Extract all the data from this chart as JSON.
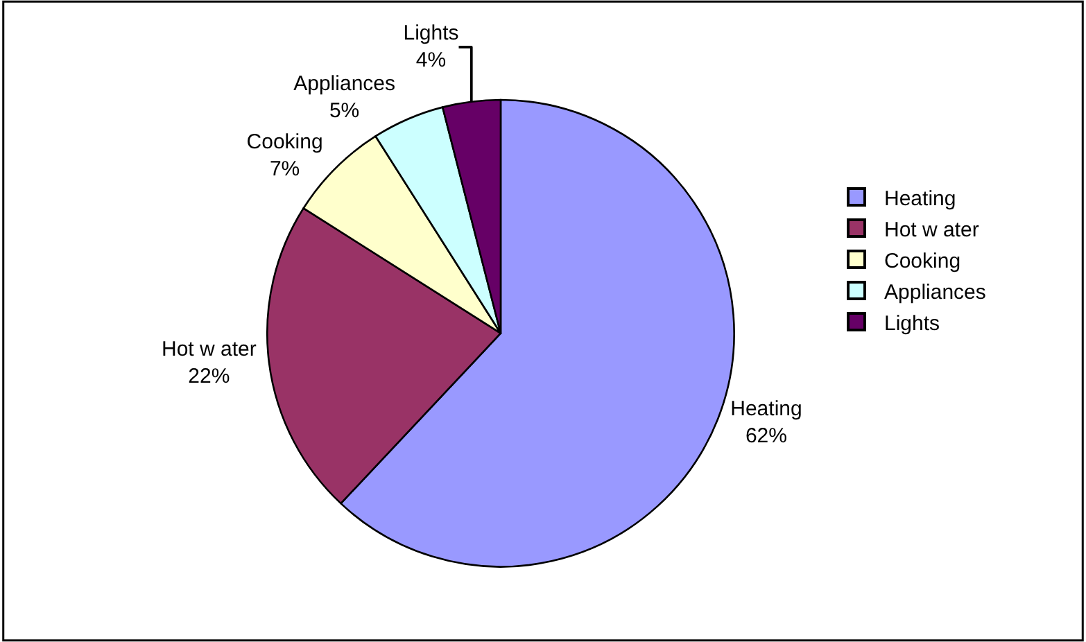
{
  "chart_data": {
    "type": "pie",
    "categories": [
      "Heating",
      "Hot w ater",
      "Cooking",
      "Appliances",
      "Lights"
    ],
    "values": [
      62,
      22,
      7,
      5,
      4
    ],
    "colors": [
      "#9999ff",
      "#993366",
      "#ffffcc",
      "#ccffff",
      "#660066"
    ],
    "value_labels": [
      "62%",
      "22%",
      "7%",
      "5%",
      "4%"
    ],
    "legend": "right"
  }
}
